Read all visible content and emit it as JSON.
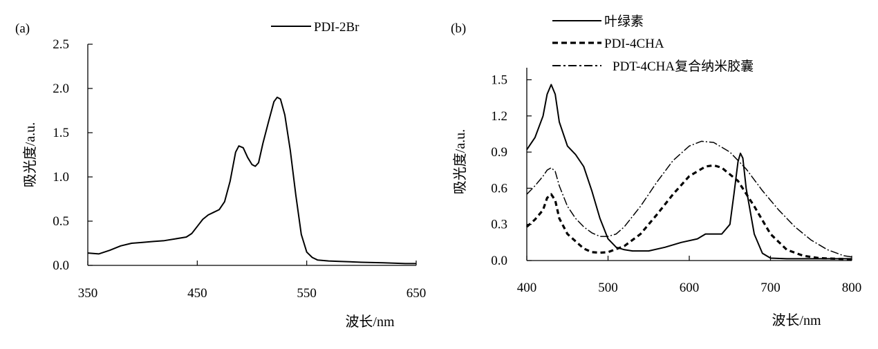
{
  "chart_data": [
    {
      "id": "a",
      "type": "line",
      "panel_label": "(a)",
      "title": "",
      "xlabel": "波长/nm",
      "ylabel": "吸光度/a.u.",
      "xlim": [
        350,
        650
      ],
      "ylim": [
        0,
        2.5
      ],
      "x_ticks": [
        "350",
        "450",
        "550",
        "650"
      ],
      "y_ticks": [
        "0.0",
        "0.5",
        "1.0",
        "1.5",
        "2.0",
        "2.5"
      ],
      "legend_position": "top-right",
      "series": [
        {
          "name": "PDI-2Br",
          "style": "solid",
          "color": "#000000",
          "points": [
            [
              350,
              0.14
            ],
            [
              360,
              0.13
            ],
            [
              370,
              0.17
            ],
            [
              380,
              0.22
            ],
            [
              390,
              0.25
            ],
            [
              400,
              0.26
            ],
            [
              410,
              0.27
            ],
            [
              420,
              0.28
            ],
            [
              430,
              0.3
            ],
            [
              440,
              0.32
            ],
            [
              445,
              0.36
            ],
            [
              450,
              0.44
            ],
            [
              455,
              0.52
            ],
            [
              460,
              0.57
            ],
            [
              465,
              0.6
            ],
            [
              470,
              0.63
            ],
            [
              475,
              0.72
            ],
            [
              480,
              0.95
            ],
            [
              485,
              1.28
            ],
            [
              488,
              1.35
            ],
            [
              492,
              1.33
            ],
            [
              496,
              1.22
            ],
            [
              500,
              1.14
            ],
            [
              503,
              1.12
            ],
            [
              506,
              1.16
            ],
            [
              510,
              1.38
            ],
            [
              515,
              1.62
            ],
            [
              520,
              1.85
            ],
            [
              523,
              1.9
            ],
            [
              526,
              1.88
            ],
            [
              530,
              1.7
            ],
            [
              535,
              1.3
            ],
            [
              540,
              0.8
            ],
            [
              545,
              0.35
            ],
            [
              550,
              0.15
            ],
            [
              555,
              0.09
            ],
            [
              560,
              0.06
            ],
            [
              570,
              0.05
            ],
            [
              580,
              0.045
            ],
            [
              600,
              0.035
            ],
            [
              620,
              0.03
            ],
            [
              640,
              0.02
            ],
            [
              650,
              0.02
            ]
          ]
        }
      ]
    },
    {
      "id": "b",
      "type": "line",
      "panel_label": "(b)",
      "title": "",
      "xlabel": "波长/nm",
      "ylabel": "吸光度/a.u.",
      "xlim": [
        400,
        800
      ],
      "ylim": [
        0,
        1.6
      ],
      "x_ticks": [
        "400",
        "500",
        "600",
        "700",
        "800"
      ],
      "y_ticks": [
        "0.0",
        "0.3",
        "0.6",
        "0.9",
        "1.2",
        "1.5"
      ],
      "legend_position": "top-center",
      "series": [
        {
          "name": "叶绿素",
          "style": "solid",
          "color": "#000000",
          "points": [
            [
              400,
              0.92
            ],
            [
              410,
              1.02
            ],
            [
              420,
              1.2
            ],
            [
              425,
              1.38
            ],
            [
              430,
              1.46
            ],
            [
              435,
              1.38
            ],
            [
              440,
              1.15
            ],
            [
              450,
              0.95
            ],
            [
              460,
              0.88
            ],
            [
              470,
              0.78
            ],
            [
              480,
              0.58
            ],
            [
              490,
              0.35
            ],
            [
              500,
              0.18
            ],
            [
              510,
              0.11
            ],
            [
              520,
              0.09
            ],
            [
              530,
              0.08
            ],
            [
              550,
              0.08
            ],
            [
              570,
              0.11
            ],
            [
              590,
              0.15
            ],
            [
              610,
              0.18
            ],
            [
              620,
              0.22
            ],
            [
              640,
              0.22
            ],
            [
              650,
              0.3
            ],
            [
              655,
              0.55
            ],
            [
              660,
              0.82
            ],
            [
              663,
              0.89
            ],
            [
              666,
              0.85
            ],
            [
              670,
              0.6
            ],
            [
              680,
              0.22
            ],
            [
              690,
              0.06
            ],
            [
              700,
              0.02
            ],
            [
              720,
              0.015
            ],
            [
              760,
              0.015
            ],
            [
              800,
              0.015
            ]
          ]
        },
        {
          "name": "PDI-4CHA",
          "style": "dashed",
          "color": "#000000",
          "points": [
            [
              400,
              0.28
            ],
            [
              410,
              0.34
            ],
            [
              420,
              0.42
            ],
            [
              425,
              0.52
            ],
            [
              430,
              0.55
            ],
            [
              435,
              0.5
            ],
            [
              440,
              0.35
            ],
            [
              450,
              0.22
            ],
            [
              460,
              0.16
            ],
            [
              470,
              0.1
            ],
            [
              480,
              0.07
            ],
            [
              490,
              0.065
            ],
            [
              500,
              0.07
            ],
            [
              520,
              0.12
            ],
            [
              540,
              0.22
            ],
            [
              560,
              0.38
            ],
            [
              580,
              0.55
            ],
            [
              600,
              0.7
            ],
            [
              620,
              0.78
            ],
            [
              630,
              0.79
            ],
            [
              640,
              0.77
            ],
            [
              660,
              0.66
            ],
            [
              680,
              0.45
            ],
            [
              700,
              0.22
            ],
            [
              720,
              0.09
            ],
            [
              740,
              0.04
            ],
            [
              760,
              0.02
            ],
            [
              800,
              0.01
            ]
          ]
        },
        {
          "name": "PDT-4CHA复合纳米胶囊",
          "style": "dashdot",
          "color": "#000000",
          "points": [
            [
              400,
              0.55
            ],
            [
              410,
              0.62
            ],
            [
              420,
              0.7
            ],
            [
              425,
              0.75
            ],
            [
              430,
              0.77
            ],
            [
              435,
              0.74
            ],
            [
              440,
              0.62
            ],
            [
              450,
              0.45
            ],
            [
              460,
              0.35
            ],
            [
              470,
              0.28
            ],
            [
              480,
              0.23
            ],
            [
              490,
              0.2
            ],
            [
              500,
              0.2
            ],
            [
              510,
              0.22
            ],
            [
              520,
              0.28
            ],
            [
              540,
              0.45
            ],
            [
              560,
              0.65
            ],
            [
              580,
              0.83
            ],
            [
              600,
              0.95
            ],
            [
              615,
              0.99
            ],
            [
              630,
              0.98
            ],
            [
              650,
              0.9
            ],
            [
              670,
              0.76
            ],
            [
              690,
              0.58
            ],
            [
              710,
              0.42
            ],
            [
              730,
              0.28
            ],
            [
              750,
              0.17
            ],
            [
              770,
              0.09
            ],
            [
              790,
              0.04
            ],
            [
              800,
              0.03
            ]
          ]
        }
      ]
    }
  ]
}
